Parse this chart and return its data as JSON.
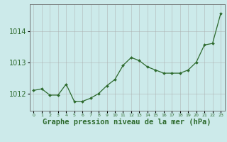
{
  "x": [
    0,
    1,
    2,
    3,
    4,
    5,
    6,
    7,
    8,
    9,
    10,
    11,
    12,
    13,
    14,
    15,
    16,
    17,
    18,
    19,
    20,
    21,
    22,
    23
  ],
  "y": [
    1012.1,
    1012.15,
    1011.95,
    1011.95,
    1012.3,
    1011.75,
    1011.75,
    1011.85,
    1012.0,
    1012.25,
    1012.45,
    1012.9,
    1013.15,
    1013.05,
    1012.85,
    1012.75,
    1012.65,
    1012.65,
    1012.65,
    1012.75,
    1013.0,
    1013.55,
    1013.6,
    1014.55
  ],
  "line_color": "#2d6a2d",
  "marker_color": "#2d6a2d",
  "bg_color": "#cceaea",
  "grid_color": "#aaaaaa",
  "xlabel": "Graphe pression niveau de la mer (hPa)",
  "xlabel_fontsize": 7.5,
  "ylabel_ticks": [
    1012,
    1013,
    1014
  ],
  "ylim": [
    1011.45,
    1014.85
  ],
  "xlim": [
    -0.5,
    23.5
  ],
  "border_color": "#666666",
  "tick_color": "#2d6a2d",
  "ytick_fontsize": 7,
  "xtick_fontsize": 4.5
}
